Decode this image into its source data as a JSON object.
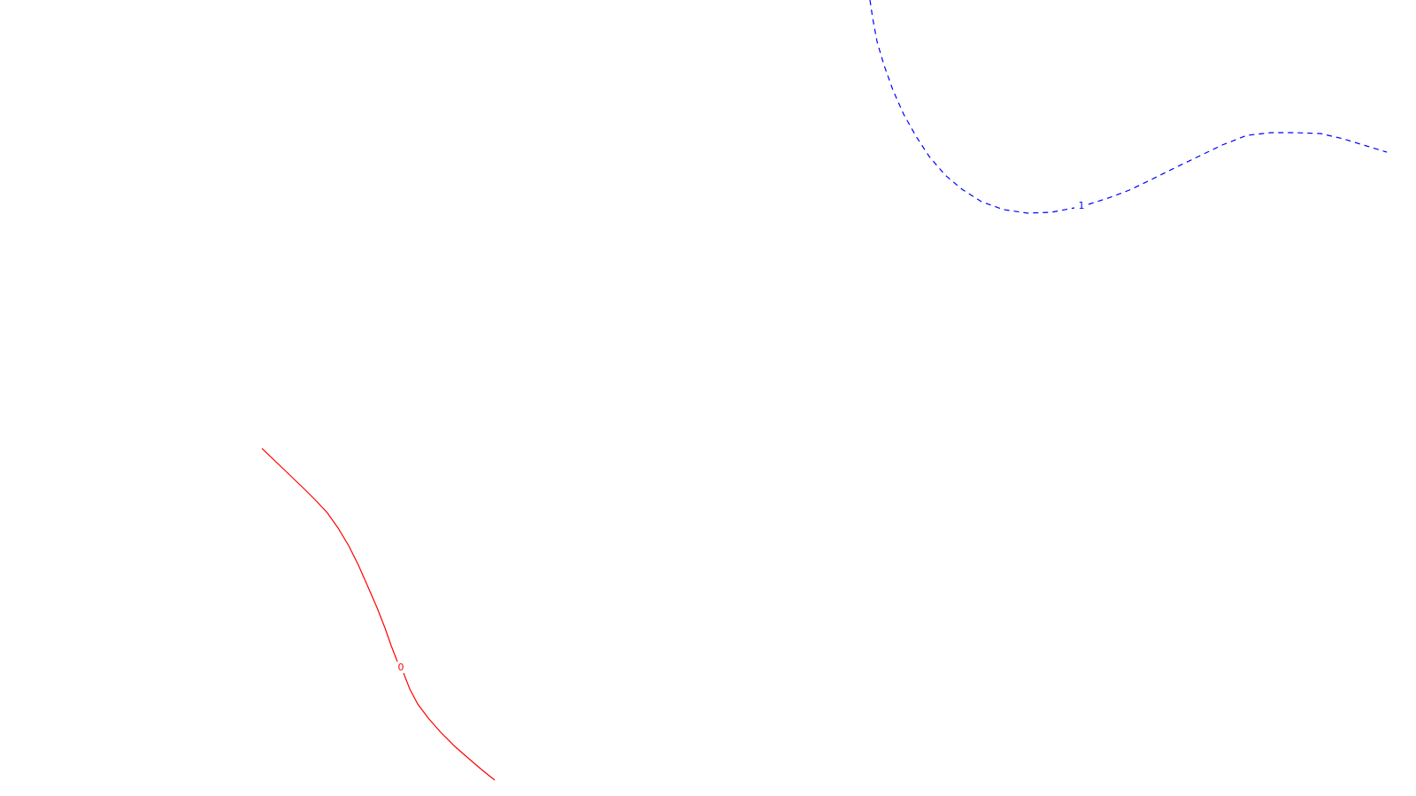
{
  "chart_data": {
    "type": "line",
    "title": "",
    "xlabel": "",
    "ylabel": "",
    "grid": false,
    "series": [
      {
        "level_label": "0",
        "color": "#ff0000",
        "style": "solid"
      },
      {
        "level_label": "1",
        "color": "#0000ff",
        "style": "dashed"
      }
    ]
  }
}
